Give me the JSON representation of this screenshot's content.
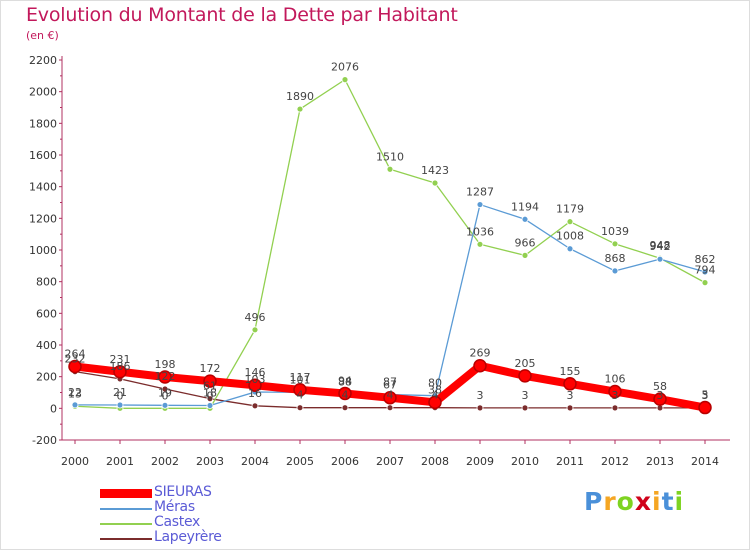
{
  "chart_data": {
    "type": "line",
    "title": "Evolution du Montant de la Dette par Habitant",
    "subtitle": "(en €)",
    "x": [
      "2000",
      "2001",
      "2002",
      "2003",
      "2004",
      "2005",
      "2006",
      "2007",
      "2008",
      "2009",
      "2010",
      "2011",
      "2012",
      "2013",
      "2014"
    ],
    "ylim": [
      -200,
      2200
    ],
    "yticks": [
      -200,
      0,
      200,
      400,
      600,
      800,
      1000,
      1200,
      1400,
      1600,
      1800,
      2000,
      2200
    ],
    "grid": false,
    "legend_position": "bottom-left",
    "series": [
      {
        "name": "SIEURAS",
        "color": "#ff0000",
        "values": [
          264,
          231,
          198,
          172,
          146,
          117,
          94,
          67,
          38,
          269,
          205,
          155,
          106,
          58,
          5
        ]
      },
      {
        "name": "Méras",
        "color": "#5b9bd5",
        "values": [
          22,
          21,
          19,
          18,
          103,
          101,
          88,
          87,
          80,
          1287,
          1194,
          1008,
          868,
          942,
          862
        ]
      },
      {
        "name": "Castex",
        "color": "#92d050",
        "values": [
          13,
          0,
          0,
          0,
          496,
          1890,
          2076,
          1510,
          1423,
          1036,
          966,
          1179,
          1039,
          948,
          794
        ]
      },
      {
        "name": "Lapeyrère",
        "color": "#7b2c2c",
        "values": [
          232,
          186,
          122,
          61,
          16,
          4,
          4,
          4,
          4,
          3,
          3,
          3,
          3,
          3,
          3
        ]
      }
    ]
  },
  "logo": {
    "letters": [
      "P",
      "r",
      "o",
      "x",
      "i",
      "t",
      "i"
    ],
    "colors": [
      "#4a90d9",
      "#f5a623",
      "#7ed321",
      "#d0021b",
      "#f5a623",
      "#4a90d9",
      "#7ed321"
    ]
  }
}
